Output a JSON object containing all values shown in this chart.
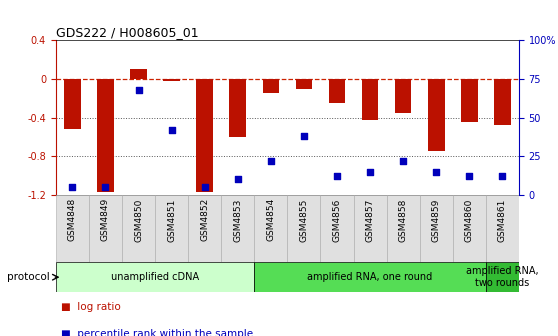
{
  "title": "GDS222 / H008605_01",
  "samples": [
    "GSM4848",
    "GSM4849",
    "GSM4850",
    "GSM4851",
    "GSM4852",
    "GSM4853",
    "GSM4854",
    "GSM4855",
    "GSM4856",
    "GSM4857",
    "GSM4858",
    "GSM4859",
    "GSM4860",
    "GSM4861"
  ],
  "log_ratio": [
    -0.52,
    -1.17,
    0.1,
    -0.02,
    -1.17,
    -0.6,
    -0.15,
    -0.1,
    -0.25,
    -0.42,
    -0.35,
    -0.75,
    -0.45,
    -0.48
  ],
  "percentile": [
    5,
    5,
    68,
    42,
    5,
    10,
    22,
    38,
    12,
    15,
    22,
    15,
    12,
    12
  ],
  "ylim_left": [
    -1.2,
    0.4
  ],
  "ylim_right": [
    0,
    100
  ],
  "bar_color": "#bb1100",
  "dot_color": "#0000bb",
  "ref_line_color": "#cc2200",
  "grid_color": "#555555",
  "background_color": "#ffffff",
  "protocol_groups": [
    {
      "label": "unamplified cDNA",
      "start": 0,
      "end": 6,
      "color": "#ccffcc"
    },
    {
      "label": "amplified RNA, one round",
      "start": 6,
      "end": 13,
      "color": "#55dd55"
    },
    {
      "label": "amplified RNA,\ntwo rounds",
      "start": 13,
      "end": 14,
      "color": "#33bb33"
    }
  ],
  "left_yticks": [
    -1.2,
    -0.8,
    -0.4,
    0,
    0.4
  ],
  "right_yticks": [
    0,
    25,
    50,
    75,
    100
  ],
  "right_yticklabels": [
    "0",
    "25",
    "50",
    "75",
    "100%"
  ]
}
